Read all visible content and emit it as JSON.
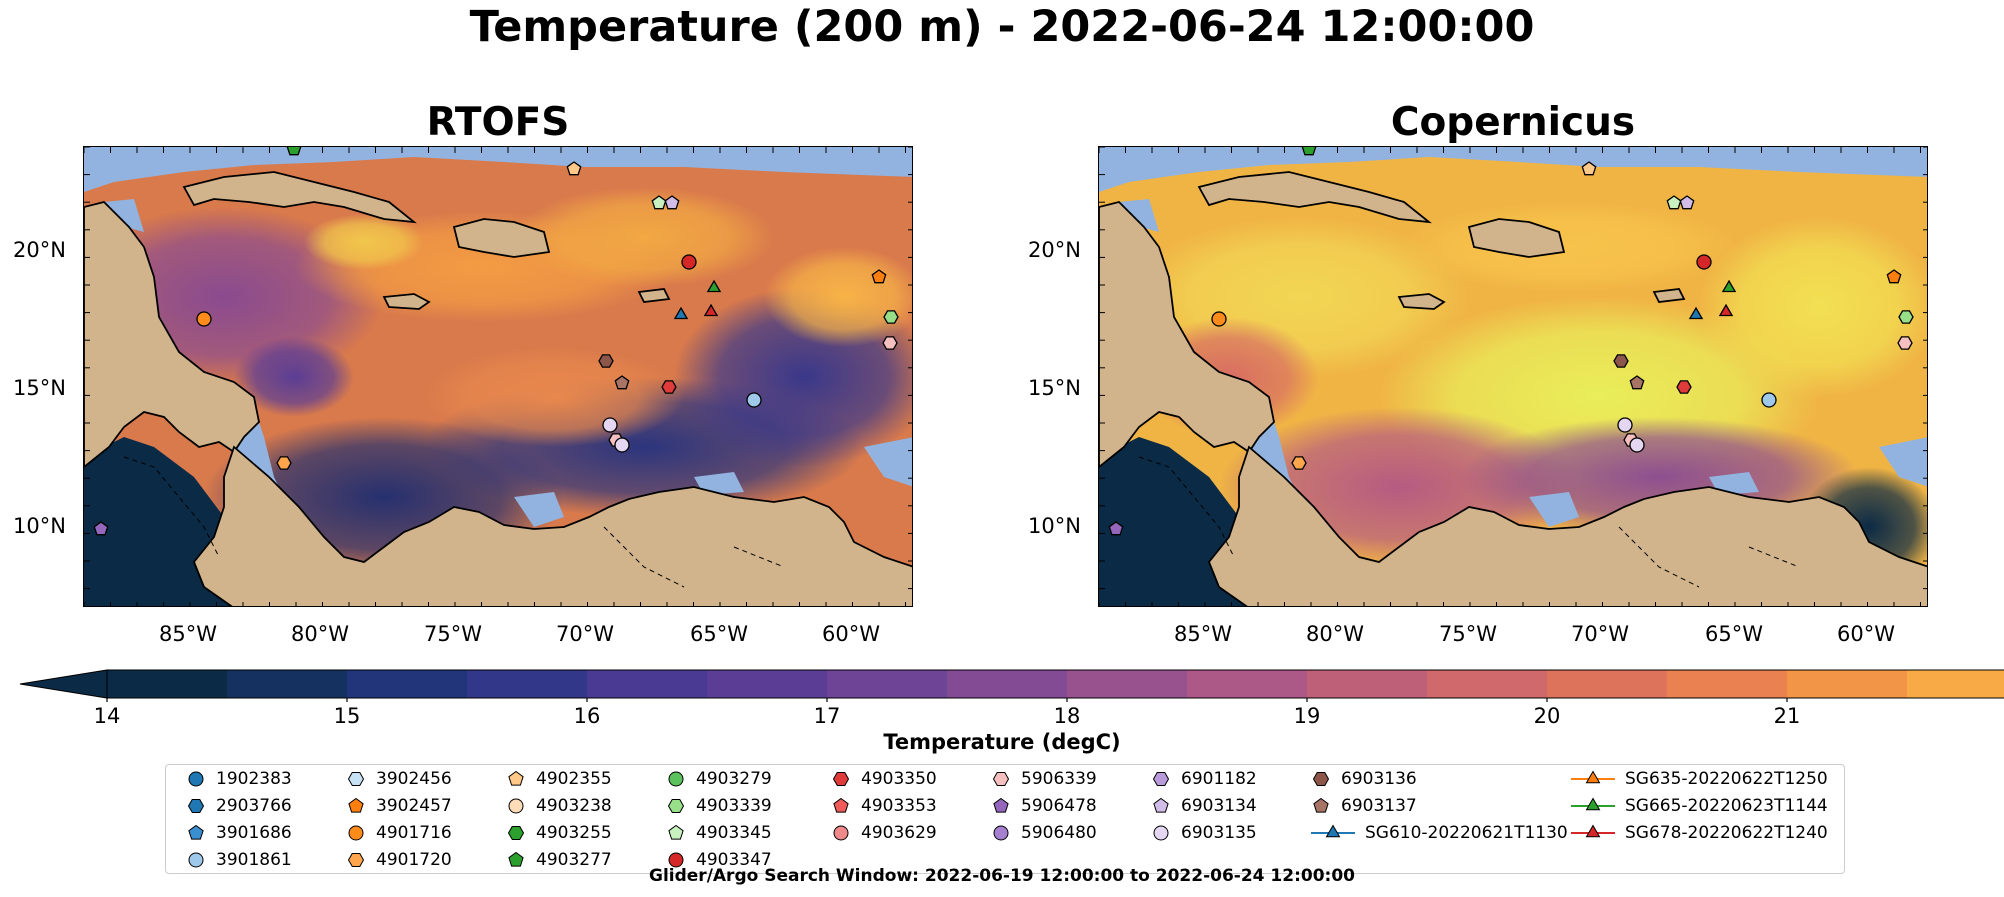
{
  "figure": {
    "title": "Temperature (200 m) - 2022-06-24 12:00:00",
    "footer": "Glider/Argo Search Window: 2022-06-19 12:00:00 to 2022-06-24 12:00:00"
  },
  "panels": [
    {
      "title": "RTOFS"
    },
    {
      "title": "Copernicus"
    }
  ],
  "axes": {
    "lat_labels": [
      "20°N",
      "15°N",
      "10°N"
    ],
    "lon_labels": [
      "85°W",
      "80°W",
      "75°W",
      "70°W",
      "65°W",
      "60°W"
    ]
  },
  "colorbar": {
    "title": "Temperature (degC)",
    "ticks": [
      "14",
      "15",
      "16",
      "17",
      "18",
      "19",
      "20",
      "21"
    ],
    "colors": [
      "#0b2a45",
      "#15315f",
      "#22347a",
      "#33378a",
      "#4a3a93",
      "#5b3d95",
      "#6e4496",
      "#834b93",
      "#98528e",
      "#ac5988",
      "#bf6079",
      "#d0696b",
      "#de735c",
      "#ea8150",
      "#f39546",
      "#f7aa45",
      "#f7c04b",
      "#f2d654",
      "#eaf05a"
    ]
  },
  "legend": {
    "items": [
      {
        "label": "1902383",
        "color": "#1f77b4",
        "shape": "circle"
      },
      {
        "label": "2903766",
        "color": "#1f77b4",
        "shape": "hexagon"
      },
      {
        "label": "3901686",
        "color": "#3a8fd0",
        "shape": "pentagon"
      },
      {
        "label": "3901861",
        "color": "#9ec9ea",
        "shape": "circle"
      },
      {
        "label": "3902456",
        "color": "#c8e2f5",
        "shape": "hexagon"
      },
      {
        "label": "3902457",
        "color": "#ff7f0e",
        "shape": "pentagon"
      },
      {
        "label": "4901716",
        "color": "#ff8c1a",
        "shape": "circle"
      },
      {
        "label": "4901720",
        "color": "#ffa64d",
        "shape": "hexagon"
      },
      {
        "label": "4902355",
        "color": "#ffc98a",
        "shape": "pentagon"
      },
      {
        "label": "4903238",
        "color": "#ffdcb8",
        "shape": "circle"
      },
      {
        "label": "4903255",
        "color": "#2ca02c",
        "shape": "hexagon"
      },
      {
        "label": "4903277",
        "color": "#2ca02c",
        "shape": "pentagon"
      },
      {
        "label": "4903279",
        "color": "#5cc25c",
        "shape": "circle"
      },
      {
        "label": "4903339",
        "color": "#98df8a",
        "shape": "hexagon"
      },
      {
        "label": "4903345",
        "color": "#c9f0bf",
        "shape": "pentagon"
      },
      {
        "label": "4903347",
        "color": "#d62728",
        "shape": "circle"
      },
      {
        "label": "4903350",
        "color": "#e03b3b",
        "shape": "hexagon"
      },
      {
        "label": "4903353",
        "color": "#ef5a5a",
        "shape": "pentagon"
      },
      {
        "label": "4903629",
        "color": "#f08a8a",
        "shape": "circle"
      },
      {
        "label": "5906339",
        "color": "#f7c0c0",
        "shape": "hexagon"
      },
      {
        "label": "5906478",
        "color": "#9467bd",
        "shape": "pentagon"
      },
      {
        "label": "5906480",
        "color": "#a57fd0",
        "shape": "circle"
      },
      {
        "label": "6901182",
        "color": "#b99bdb",
        "shape": "hexagon"
      },
      {
        "label": "6903134",
        "color": "#d1bde8",
        "shape": "pentagon"
      },
      {
        "label": "6903135",
        "color": "#e5d6f2",
        "shape": "circle"
      },
      {
        "label": "6903136",
        "color": "#8c564b",
        "shape": "hexagon"
      },
      {
        "label": "6903137",
        "color": "#a87466",
        "shape": "pentagon"
      },
      {
        "label": "SG610-20220621T1130",
        "color": "#1f77b4",
        "shape": "triangle"
      },
      {
        "label": "SG635-20220622T1250",
        "color": "#ff7f0e",
        "shape": "triangle"
      },
      {
        "label": "SG665-20220623T1144",
        "color": "#2ca02c",
        "shape": "triangle"
      },
      {
        "label": "SG678-20220622T1240",
        "color": "#d62728",
        "shape": "triangle"
      }
    ]
  },
  "map_colors": {
    "land": "#d2b48c",
    "shelf": "#92b3df",
    "deep_pacific": "#0b2a45"
  }
}
